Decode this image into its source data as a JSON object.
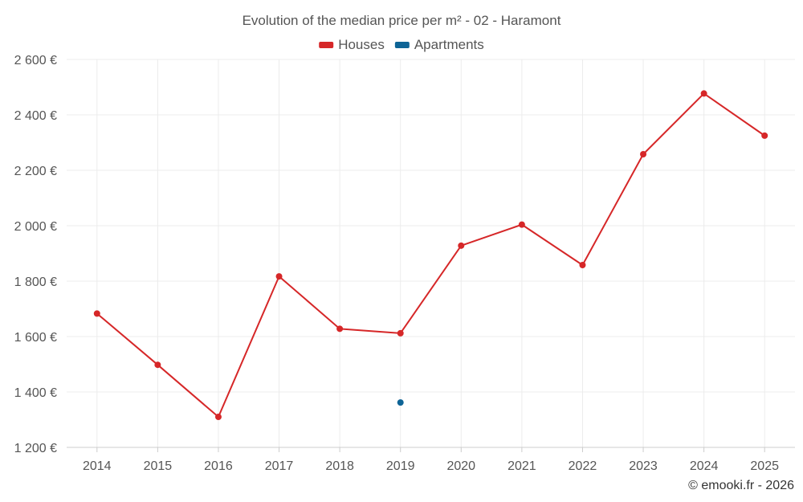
{
  "chart_data": {
    "type": "line",
    "title": "Evolution of the median price per m² - 02 - Haramont",
    "categories": [
      "2014",
      "2015",
      "2016",
      "2017",
      "2018",
      "2019",
      "2020",
      "2021",
      "2022",
      "2023",
      "2024",
      "2025"
    ],
    "series": [
      {
        "name": "Houses",
        "color": "#d62728",
        "values": [
          1683,
          1498,
          1310,
          1817,
          1628,
          1612,
          1928,
          2004,
          1858,
          2258,
          2477,
          2325
        ]
      },
      {
        "name": "Apartments",
        "color": "#0e6496",
        "values": [
          null,
          null,
          null,
          null,
          null,
          1362,
          null,
          null,
          null,
          null,
          null,
          null
        ]
      }
    ],
    "yticks": [
      1200,
      1400,
      1600,
      1800,
      2000,
      2200,
      2400,
      2600
    ],
    "ytick_labels": [
      "1 200 €",
      "1 400 €",
      "1 600 €",
      "1 800 €",
      "2 000 €",
      "2 200 €",
      "2 400 €",
      "2 600 €"
    ],
    "ylim": [
      1200,
      2600
    ],
    "xlabel": "",
    "ylabel": "",
    "grid": true,
    "legend_position": "top-center"
  },
  "credit": "© emooki.fr - 2026"
}
